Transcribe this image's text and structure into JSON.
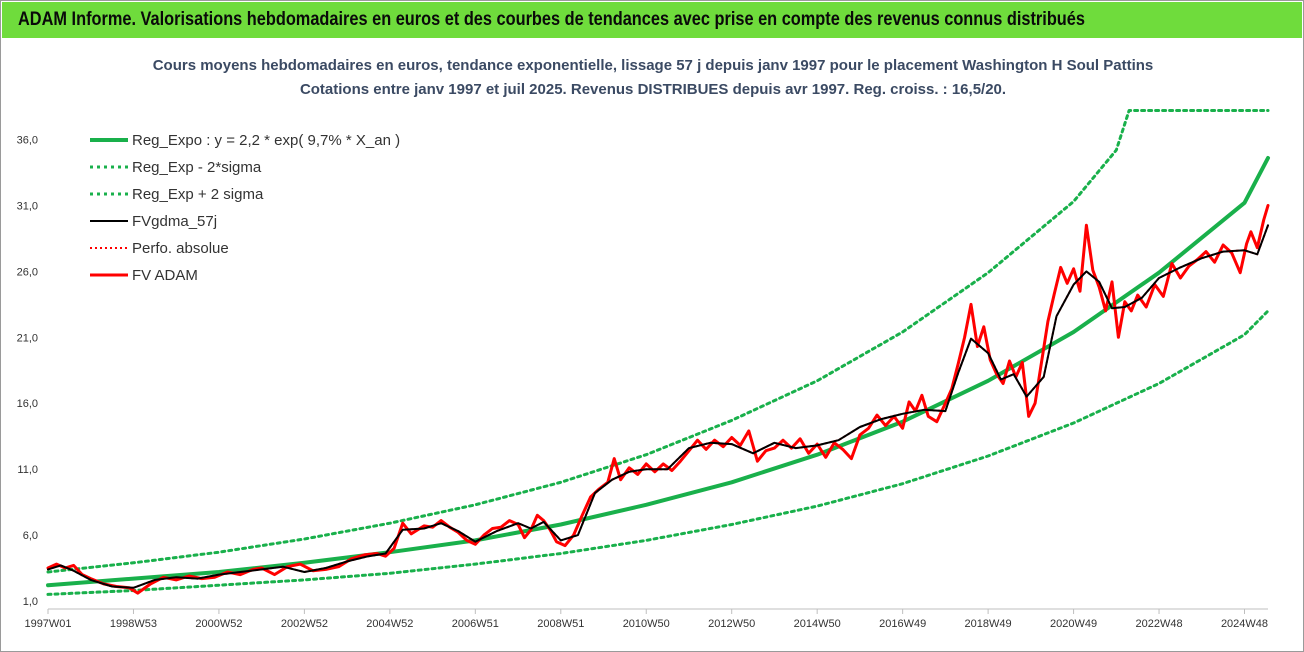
{
  "banner": {
    "title": "ADAM Informe. Valorisations hebdomadaires en euros et des courbes de tendances avec prise en compte des revenus connus distribués"
  },
  "colors": {
    "banner_bg": "#6fdc3c",
    "regression": "#19b04b",
    "sigma_bands": "#19b04b",
    "fvgdma": "#000000",
    "perfo": "#ff0000",
    "fvadam": "#ff0000",
    "title_text": "#3b4a63"
  },
  "chart_data": {
    "type": "line",
    "title": "Cours moyens hebdomadaires en euros, tendance exponentielle, lissage 57 j depuis janv 1997 pour le placement Washington H Soul Pattins",
    "subtitle": "Cotations entre janv 1997 et juil 2025. Revenus DISTRIBUES depuis avr 1997. Reg. croiss. : 16,5/20.",
    "xlabel": "",
    "ylabel": "",
    "x_range": [
      1997.0,
      2025.55
    ],
    "ylim": [
      1.0,
      39.0
    ],
    "y_ticks": [
      "1,0",
      "6,0",
      "11,0",
      "16,0",
      "21,0",
      "26,0",
      "31,0",
      "36,0"
    ],
    "y_tick_values": [
      1,
      6,
      11,
      16,
      21,
      26,
      31,
      36
    ],
    "x_ticks": [
      "1997W01",
      "1998W53",
      "2000W52",
      "2002W52",
      "2004W52",
      "2006W51",
      "2008W51",
      "2010W50",
      "2012W50",
      "2014W50",
      "2016W49",
      "2018W49",
      "2020W49",
      "2022W48",
      "2024W48"
    ],
    "x_tick_values": [
      1997.0,
      1999.0,
      2001.0,
      2003.0,
      2005.0,
      2007.0,
      2009.0,
      2011.0,
      2013.0,
      2015.0,
      2017.0,
      2019.0,
      2021.0,
      2023.0,
      2025.0
    ],
    "grid": false,
    "legend_position": "top-left",
    "series": [
      {
        "name": "Reg_Expo : y = 2,2 * exp( 9,7% *  X_an )",
        "style": "solid-thick",
        "x": [
          1997.0,
          1999.0,
          2001.0,
          2003.0,
          2005.0,
          2007.0,
          2009.0,
          2011.0,
          2013.0,
          2015.0,
          2017.0,
          2019.0,
          2021.0,
          2023.0,
          2025.0,
          2025.55
        ],
        "values": [
          2.2,
          2.7,
          3.2,
          3.9,
          4.7,
          5.6,
          6.8,
          8.3,
          10.0,
          12.1,
          14.6,
          17.7,
          21.4,
          25.9,
          31.2,
          34.6
        ]
      },
      {
        "name": "Reg_Exp - 2*sigma",
        "style": "dotted",
        "x": [
          1997.0,
          1999.0,
          2001.0,
          2003.0,
          2005.0,
          2007.0,
          2009.0,
          2011.0,
          2013.0,
          2015.0,
          2017.0,
          2019.0,
          2021.0,
          2023.0,
          2025.0,
          2025.55
        ],
        "values": [
          1.5,
          1.8,
          2.2,
          2.6,
          3.1,
          3.8,
          4.6,
          5.6,
          6.8,
          8.2,
          9.9,
          12.0,
          14.5,
          17.5,
          21.2,
          23.0
        ]
      },
      {
        "name": "Reg_Exp + 2 sigma",
        "style": "dotted",
        "x": [
          1997.0,
          1999.0,
          2001.0,
          2003.0,
          2005.0,
          2007.0,
          2009.0,
          2011.0,
          2013.0,
          2015.0,
          2017.0,
          2019.0,
          2021.0,
          2022.0,
          2022.3,
          2025.55
        ],
        "values": [
          3.2,
          3.9,
          4.7,
          5.7,
          6.9,
          8.3,
          10.0,
          12.1,
          14.7,
          17.7,
          21.4,
          25.9,
          31.3,
          35.2,
          38.2,
          38.2
        ]
      },
      {
        "name": "FVgdma_57j",
        "style": "solid",
        "x": [
          1997.0,
          1997.3,
          1997.6,
          1998.0,
          1998.5,
          1999.0,
          1999.5,
          2000.0,
          2000.5,
          2001.0,
          2001.5,
          2002.0,
          2002.5,
          2003.0,
          2003.5,
          2004.0,
          2004.5,
          2004.9,
          2005.3,
          2005.8,
          2006.2,
          2006.6,
          2007.0,
          2007.5,
          2008.0,
          2008.3,
          2008.6,
          2009.0,
          2009.4,
          2009.8,
          2010.2,
          2010.6,
          2011.0,
          2011.5,
          2012.0,
          2012.5,
          2013.0,
          2013.5,
          2014.0,
          2014.5,
          2015.0,
          2015.5,
          2016.0,
          2016.5,
          2017.0,
          2017.5,
          2018.0,
          2018.3,
          2018.6,
          2019.0,
          2019.3,
          2019.6,
          2019.9,
          2020.3,
          2020.6,
          2021.0,
          2021.3,
          2021.6,
          2021.9,
          2022.2,
          2022.6,
          2023.0,
          2023.5,
          2024.0,
          2024.5,
          2025.0,
          2025.3,
          2025.55
        ],
        "values": [
          3.4,
          3.7,
          3.3,
          2.6,
          2.1,
          2.0,
          2.6,
          2.8,
          2.7,
          3.0,
          3.2,
          3.4,
          3.6,
          3.2,
          3.5,
          4.0,
          4.4,
          4.6,
          6.4,
          6.5,
          6.9,
          6.3,
          5.5,
          6.3,
          6.9,
          6.5,
          7.0,
          5.6,
          6.0,
          9.2,
          10.2,
          10.8,
          11.0,
          11.0,
          12.6,
          13.0,
          12.9,
          12.2,
          13.0,
          12.6,
          12.8,
          13.2,
          14.2,
          14.8,
          15.2,
          15.5,
          15.4,
          18.3,
          20.9,
          19.8,
          17.8,
          18.2,
          16.5,
          18.0,
          22.6,
          25.0,
          26.0,
          25.2,
          23.2,
          23.3,
          24.0,
          25.5,
          26.3,
          27.0,
          27.5,
          27.6,
          27.3,
          29.5
        ]
      },
      {
        "name": "Perfo. absolue",
        "style": "dotted",
        "x": [
          1997.0,
          1997.3,
          1997.6,
          1998.0,
          1998.5,
          1999.0,
          1999.5,
          2000.0,
          2000.5,
          2001.0,
          2001.5,
          2002.0,
          2002.5,
          2003.0,
          2003.5,
          2004.0,
          2004.5,
          2004.9,
          2005.3,
          2005.8,
          2006.2,
          2006.6,
          2007.0,
          2007.5,
          2008.0,
          2008.3,
          2008.6,
          2009.0,
          2009.4,
          2009.8,
          2010.2,
          2010.6,
          2011.0,
          2011.5,
          2012.0,
          2012.5,
          2013.0,
          2013.5,
          2014.0,
          2014.5,
          2015.0,
          2015.5,
          2016.0,
          2016.5,
          2017.0,
          2017.5,
          2018.0,
          2018.3,
          2018.6,
          2019.0,
          2019.3,
          2019.6,
          2019.9,
          2020.3,
          2020.6,
          2021.0,
          2021.3,
          2021.6,
          2021.9,
          2022.2,
          2022.6,
          2023.0,
          2023.5,
          2024.0,
          2024.5,
          2025.0,
          2025.3,
          2025.55
        ],
        "values": [
          3.4,
          3.7,
          3.3,
          2.6,
          2.1,
          2.0,
          2.6,
          2.8,
          2.7,
          3.0,
          3.2,
          3.4,
          3.6,
          3.2,
          3.5,
          4.0,
          4.4,
          4.6,
          6.4,
          6.5,
          6.9,
          6.3,
          5.5,
          6.3,
          6.9,
          6.5,
          7.0,
          5.6,
          6.0,
          9.2,
          10.2,
          10.8,
          11.0,
          11.0,
          12.6,
          13.0,
          12.9,
          12.2,
          13.0,
          12.6,
          12.8,
          13.2,
          14.2,
          14.8,
          15.2,
          15.5,
          15.4,
          18.3,
          20.9,
          19.8,
          17.8,
          18.2,
          16.5,
          18.0,
          22.6,
          25.0,
          26.0,
          25.2,
          23.2,
          23.3,
          24.0,
          25.5,
          26.3,
          27.0,
          27.5,
          27.6,
          27.3,
          29.5
        ]
      },
      {
        "name": "FV ADAM",
        "style": "solid",
        "x": [
          1997.0,
          1997.2,
          1997.4,
          1997.6,
          1997.8,
          1998.0,
          1998.3,
          1998.6,
          1998.9,
          1999.1,
          1999.4,
          1999.7,
          2000.0,
          2000.3,
          2000.6,
          2000.9,
          2001.2,
          2001.5,
          2001.8,
          2002.0,
          2002.3,
          2002.6,
          2002.9,
          2003.2,
          2003.5,
          2003.8,
          2004.1,
          2004.4,
          2004.7,
          2004.9,
          2005.1,
          2005.3,
          2005.5,
          2005.8,
          2006.0,
          2006.2,
          2006.4,
          2006.6,
          2006.8,
          2007.0,
          2007.2,
          2007.4,
          2007.6,
          2007.8,
          2008.0,
          2008.15,
          2008.3,
          2008.45,
          2008.6,
          2008.75,
          2008.9,
          2009.1,
          2009.3,
          2009.5,
          2009.7,
          2009.9,
          2010.1,
          2010.25,
          2010.4,
          2010.6,
          2010.8,
          2011.0,
          2011.2,
          2011.4,
          2011.6,
          2011.8,
          2012.0,
          2012.2,
          2012.4,
          2012.6,
          2012.8,
          2013.0,
          2013.2,
          2013.4,
          2013.6,
          2013.8,
          2014.0,
          2014.2,
          2014.4,
          2014.6,
          2014.8,
          2015.0,
          2015.2,
          2015.4,
          2015.6,
          2015.8,
          2016.0,
          2016.2,
          2016.4,
          2016.6,
          2016.8,
          2017.0,
          2017.15,
          2017.3,
          2017.45,
          2017.6,
          2017.8,
          2018.0,
          2018.15,
          2018.3,
          2018.45,
          2018.6,
          2018.75,
          2018.9,
          2019.05,
          2019.2,
          2019.35,
          2019.5,
          2019.65,
          2019.8,
          2019.95,
          2020.1,
          2020.25,
          2020.4,
          2020.55,
          2020.7,
          2020.85,
          2021.0,
          2021.15,
          2021.3,
          2021.45,
          2021.6,
          2021.75,
          2021.9,
          2022.05,
          2022.2,
          2022.35,
          2022.5,
          2022.7,
          2022.9,
          2023.1,
          2023.3,
          2023.5,
          2023.7,
          2023.9,
          2024.1,
          2024.3,
          2024.5,
          2024.7,
          2024.9,
          2025.05,
          2025.15,
          2025.3,
          2025.45,
          2025.55
        ],
        "values": [
          3.5,
          3.8,
          3.5,
          3.7,
          3.0,
          2.7,
          2.3,
          2.1,
          2.0,
          1.6,
          2.3,
          2.8,
          2.6,
          2.9,
          2.7,
          2.8,
          3.2,
          3.0,
          3.4,
          3.5,
          3.0,
          3.6,
          3.8,
          3.3,
          3.4,
          3.6,
          4.2,
          4.5,
          4.6,
          4.4,
          5.0,
          6.9,
          6.1,
          6.7,
          6.6,
          7.1,
          6.6,
          6.2,
          5.6,
          5.3,
          6.0,
          6.5,
          6.6,
          7.1,
          6.8,
          5.8,
          6.4,
          7.5,
          7.1,
          6.4,
          5.5,
          5.2,
          6.0,
          7.5,
          8.9,
          9.5,
          10.0,
          11.8,
          10.2,
          11.1,
          10.6,
          11.4,
          10.8,
          11.4,
          10.9,
          11.6,
          12.4,
          13.2,
          12.5,
          13.2,
          12.7,
          13.4,
          12.8,
          13.9,
          11.6,
          12.4,
          12.6,
          13.2,
          12.6,
          13.3,
          12.2,
          12.9,
          11.9,
          13.0,
          12.5,
          11.8,
          13.6,
          14.1,
          15.1,
          14.3,
          15.0,
          14.1,
          16.1,
          15.4,
          16.6,
          15.0,
          14.6,
          16.0,
          17.1,
          19.0,
          21.0,
          23.5,
          20.3,
          21.8,
          19.3,
          18.2,
          17.5,
          19.2,
          18.0,
          19.1,
          15.0,
          16.0,
          19.1,
          22.2,
          24.3,
          26.3,
          25.1,
          26.2,
          24.5,
          29.5,
          26.1,
          24.8,
          23.0,
          25.2,
          21.0,
          23.7,
          23.0,
          24.2,
          23.3,
          25.0,
          24.1,
          26.6,
          25.5,
          26.4,
          26.9,
          27.5,
          26.7,
          28.0,
          27.4,
          25.9,
          28.1,
          29.0,
          27.8,
          29.9,
          31.0
        ]
      }
    ]
  }
}
